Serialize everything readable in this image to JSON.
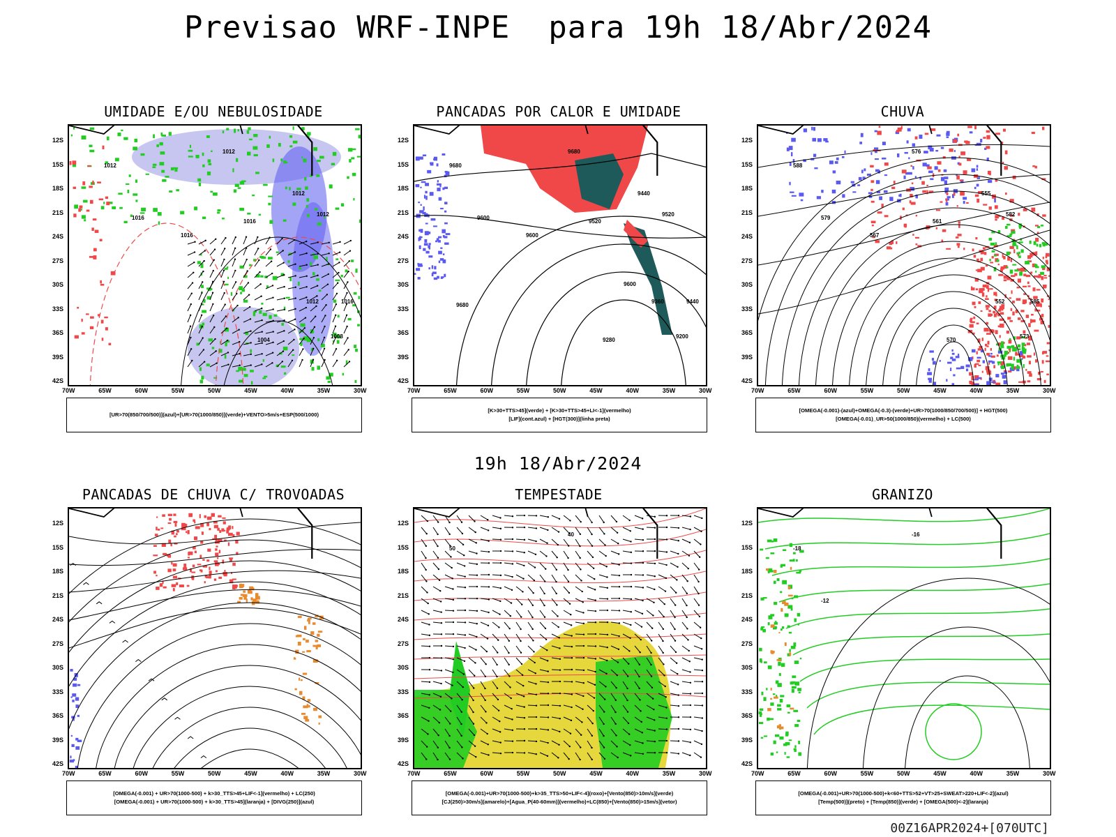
{
  "title": "Previsao WRF-INPE  para 19h 18/Abr/2024",
  "subtitle": "19h 18/Abr/2024",
  "footer": "00Z16APR2024+[070UTC]",
  "x_ticks": [
    "70W",
    "65W",
    "60W",
    "55W",
    "50W",
    "45W",
    "40W",
    "35W",
    "30W"
  ],
  "y_ticks": [
    "12S",
    "15S",
    "18S",
    "21S",
    "24S",
    "27S",
    "30S",
    "33S",
    "36S",
    "39S",
    "42S"
  ],
  "colors": {
    "blue": "#5a5af0",
    "light_blue": "#b8b8ee",
    "green": "#22cc22",
    "red": "#f04848",
    "dark_teal": "#1f5a5a",
    "yellow": "#e6d83c",
    "orange": "#e88a2e"
  },
  "panels": [
    {
      "title": "UMIDADE E/OU NEBULOSIDADE",
      "legend": [
        "[UR>70(850/700/500)](azul)+[UR>70(1000/850)](verde)+VENTO>5m/s+ESP(500/1000)"
      ],
      "labels": [
        "1012",
        "1012",
        "1016",
        "1016",
        "1016",
        "1012",
        "1012",
        "1004",
        "1008",
        "1012",
        "1016"
      ]
    },
    {
      "title": "PANCADAS POR CALOR E UMIDADE",
      "legend": [
        "[K>30+TTS>45](verde) + [K>30+TTS>45+LI<-1](vermelho)",
        "[LIF](cont.azul) + [HGT(300)](linha preta)"
      ],
      "labels": [
        "9680",
        "9680",
        "9600",
        "9600",
        "9520",
        "9440",
        "9360",
        "9280",
        "9200",
        "9520",
        "9440",
        "9680",
        "9600"
      ]
    },
    {
      "title": "CHUVA",
      "legend": [
        "[OMEGA(-0.001)-(azul)+OMEGA(-0.3)-(verde)+UR>70(1000/850/700/500)] + HGT(500)",
        "[OMEGA(-0.01)_UR>50(1000/850)(vermelho) + LC(500)"
      ],
      "labels": [
        "588",
        "576",
        "579",
        "567",
        "561",
        "555",
        "552",
        "570",
        "573",
        "582",
        "585"
      ]
    },
    {
      "title": "PANCADAS DE CHUVA C/ TROVOADAS",
      "legend": [
        "[OMEGA(-0.001) + UR>70(1000-500) + k>30_TTS>45+LIF<-1](vermelho) + LC(250)",
        "[OMEGA(-0.001) + UR>70(1000-500) + k>30_TTS>45](laranja) + [DIVG(250)](azul)"
      ],
      "labels": []
    },
    {
      "title": "TEMPESTADE",
      "legend": [
        "[OMEGA(-0.001)+UR>70(1000-500)+k>35_TTS>50+LIF<-4](roxo)+[Vento(850)>10m/s](verde)",
        "[CJ(250)>30m/s](amarelo)+[Agua_P(40-60mm)](vermelho)+LC(850)+[Vento(850)>15m/s](vetor)"
      ],
      "labels": [
        "50",
        "40"
      ]
    },
    {
      "title": "GRANIZO",
      "legend": [
        "[OMEGA(-0.001)+UR>70(1000-500)+k<60+TTS>52+VT>25+SWEAT>220+LIF<-2](azul)",
        "[Temp(500)](preto) + [Temp(850)](verde) + [OMEGA(500)<-2](laranja)"
      ],
      "labels": [
        "-18",
        "-16",
        "-12"
      ]
    }
  ]
}
